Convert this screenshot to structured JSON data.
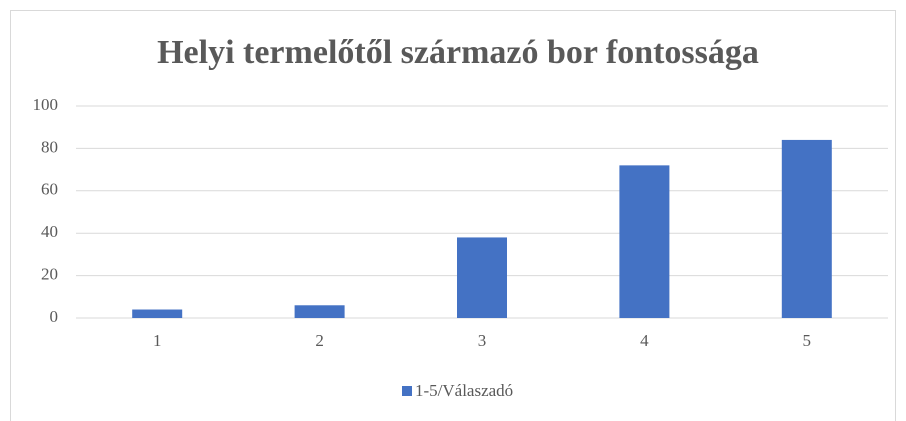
{
  "chart_data": {
    "type": "bar",
    "title": "Helyi termelőtől származó bor fontossága",
    "categories": [
      "1",
      "2",
      "3",
      "4",
      "5"
    ],
    "series": [
      {
        "name": "1-5/Válaszadó",
        "color": "#4472c4",
        "values": [
          4,
          6,
          38,
          72,
          84
        ]
      }
    ],
    "ylim": [
      0,
      100
    ],
    "yticks": [
      0,
      20,
      40,
      60,
      80,
      100
    ],
    "grid": true,
    "legend": "bottom"
  }
}
